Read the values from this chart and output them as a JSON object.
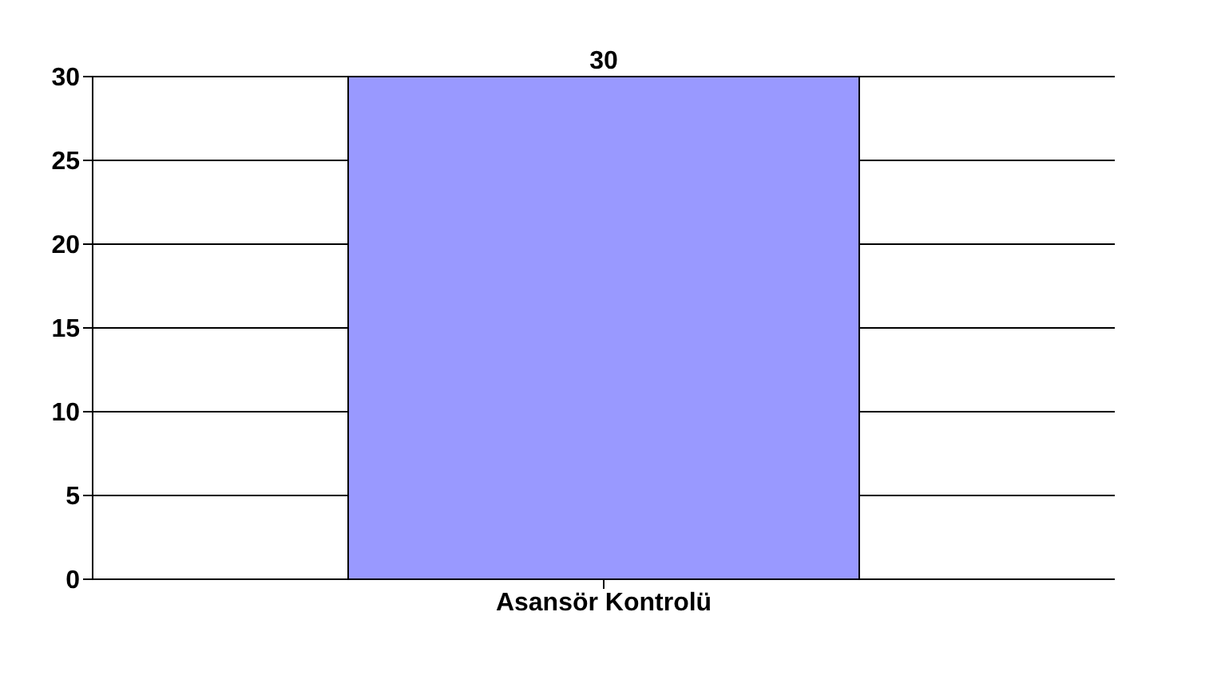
{
  "chart_data": {
    "type": "bar",
    "categories": [
      "Asansör Kontrolü"
    ],
    "values": [
      30
    ],
    "color": "#9999ff",
    "ylim": [
      0,
      30
    ],
    "yticks": [
      0,
      5,
      10,
      15,
      20,
      25,
      30
    ],
    "grid": "y",
    "data_labels": true
  }
}
